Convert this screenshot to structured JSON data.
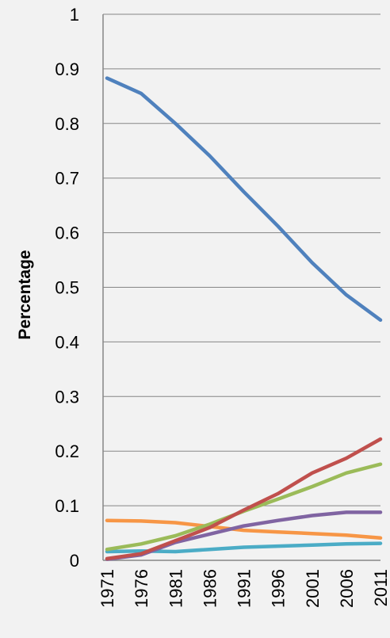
{
  "chart_data": {
    "type": "line",
    "title": "",
    "xlabel": "",
    "ylabel": "Percentage",
    "ylim": [
      0,
      1
    ],
    "yticks": [
      "0",
      "0.1",
      "0.2",
      "0.3",
      "0.4",
      "0.5",
      "0.6",
      "0.7",
      "0.8",
      "0.9",
      "1"
    ],
    "grid": true,
    "legend": "none",
    "x": [
      1971,
      1976,
      1981,
      1986,
      1991,
      1996,
      2001,
      2006,
      2011
    ],
    "xtick_labels": [
      "1971",
      "1976",
      "1981",
      "1986",
      "1991",
      "1996",
      "2001",
      "2006",
      "2011"
    ],
    "series": [
      {
        "color": "#4f81bd",
        "values": [
          0.883,
          0.855,
          0.8,
          0.741,
          0.675,
          0.612,
          0.545,
          0.486,
          0.44
        ]
      },
      {
        "color": "#c0504d",
        "values": [
          0.003,
          0.012,
          0.036,
          0.06,
          0.092,
          0.122,
          0.16,
          0.187,
          0.222
        ]
      },
      {
        "color": "#9bbb59",
        "values": [
          0.02,
          0.03,
          0.045,
          0.066,
          0.09,
          0.112,
          0.135,
          0.16,
          0.176
        ]
      },
      {
        "color": "#8064a2",
        "values": [
          0.002,
          0.01,
          0.033,
          0.048,
          0.063,
          0.073,
          0.082,
          0.088,
          0.088
        ]
      },
      {
        "color": "#f79646",
        "values": [
          0.073,
          0.072,
          0.069,
          0.062,
          0.055,
          0.052,
          0.049,
          0.046,
          0.041
        ]
      },
      {
        "color": "#4bacc6",
        "values": [
          0.016,
          0.017,
          0.016,
          0.02,
          0.024,
          0.026,
          0.028,
          0.03,
          0.031
        ]
      }
    ]
  }
}
